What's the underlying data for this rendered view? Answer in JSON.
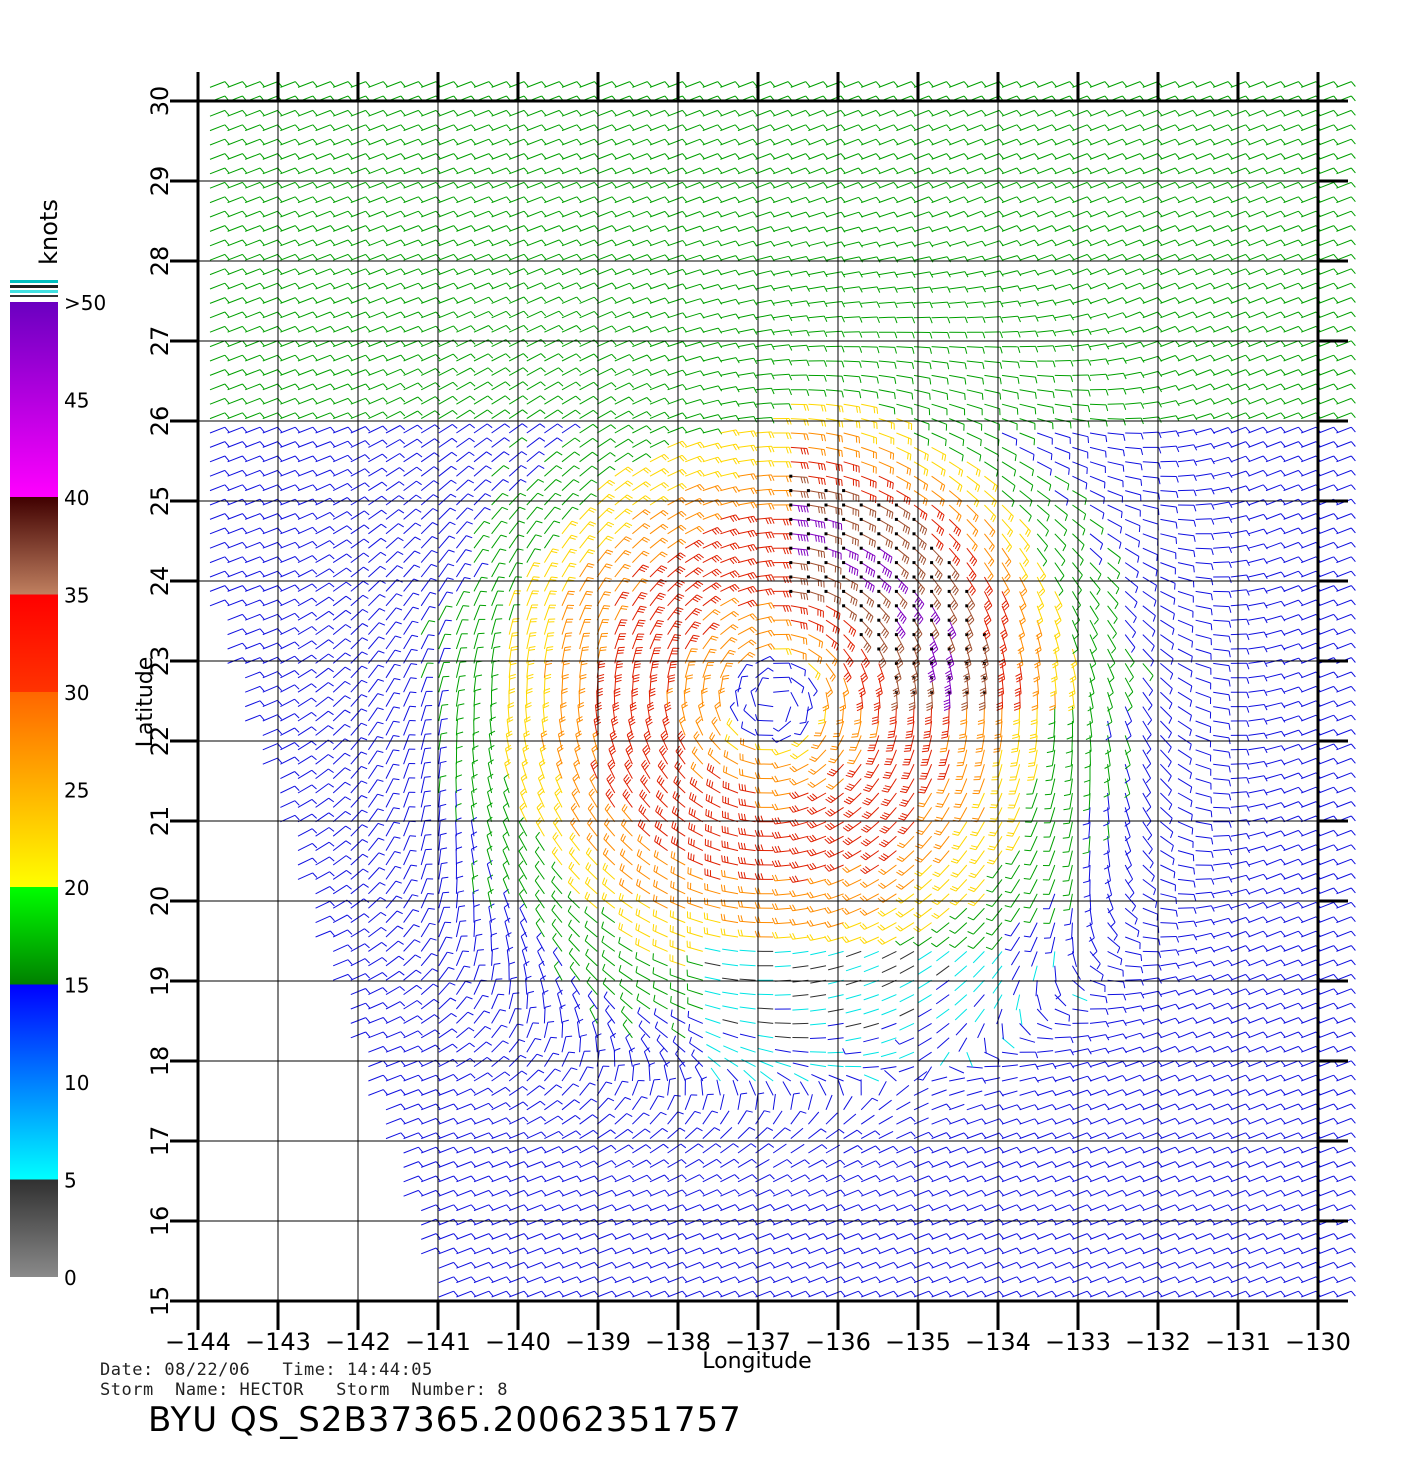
{
  "chart_data": {
    "type": "wind_barb_map",
    "xlabel": "Longitude",
    "ylabel": "Latitude",
    "xlim": [
      -144,
      -130
    ],
    "ylim": [
      15,
      30
    ],
    "x_ticks": [
      -144,
      -143,
      -142,
      -141,
      -140,
      -139,
      -138,
      -137,
      -136,
      -135,
      -134,
      -133,
      -132,
      -131,
      -130
    ],
    "y_ticks": [
      15,
      16,
      17,
      18,
      19,
      20,
      21,
      22,
      23,
      24,
      25,
      26,
      27,
      28,
      29,
      30
    ],
    "x_tick_labels": [
      "−144",
      "−143",
      "−142",
      "−141",
      "−140",
      "−139",
      "−138",
      "−137",
      "−136",
      "−135",
      "−134",
      "−133",
      "−132",
      "−131",
      "−130"
    ],
    "y_tick_labels": [
      "15",
      "16",
      "17",
      "18",
      "19",
      "20",
      "21",
      "22",
      "23",
      "24",
      "25",
      "26",
      "27",
      "28",
      "29",
      "30"
    ],
    "grid": true,
    "storm_center": {
      "lon": -136.8,
      "lat": 22.5
    },
    "colorbar": {
      "title": "knots",
      "tick_labels": [
        "0",
        "5",
        "10",
        "15",
        "20",
        "25",
        "30",
        "35",
        "40",
        "45",
        ">50"
      ],
      "bins": [
        {
          "min": 0,
          "max": 5,
          "color": "#303030",
          "color_end": "#8a8a8a"
        },
        {
          "min": 5,
          "max": 15,
          "color": "#00ffff",
          "color_end": "#0000ff"
        },
        {
          "min": 15,
          "max": 20,
          "color": "#008000",
          "color_end": "#00ff00"
        },
        {
          "min": 20,
          "max": 30,
          "color": "#ffff00",
          "color_end": "#ff6600"
        },
        {
          "min": 30,
          "max": 35,
          "color": "#ff2200",
          "color_end": "#ff0000"
        },
        {
          "min": 35,
          "max": 40,
          "color": "#c08060",
          "color_end": "#400000"
        },
        {
          "min": 40,
          "max": 50,
          "color": "#ff00ff",
          "color_end": "#6a00c0"
        }
      ]
    }
  },
  "footer": {
    "date_line": "Date: 08/22/06   Time: 14:44:05",
    "storm_line": "Storm  Name: HECTOR   Storm  Number: 8",
    "product_id": "BYU  QS_S2B37365.20062351757"
  }
}
